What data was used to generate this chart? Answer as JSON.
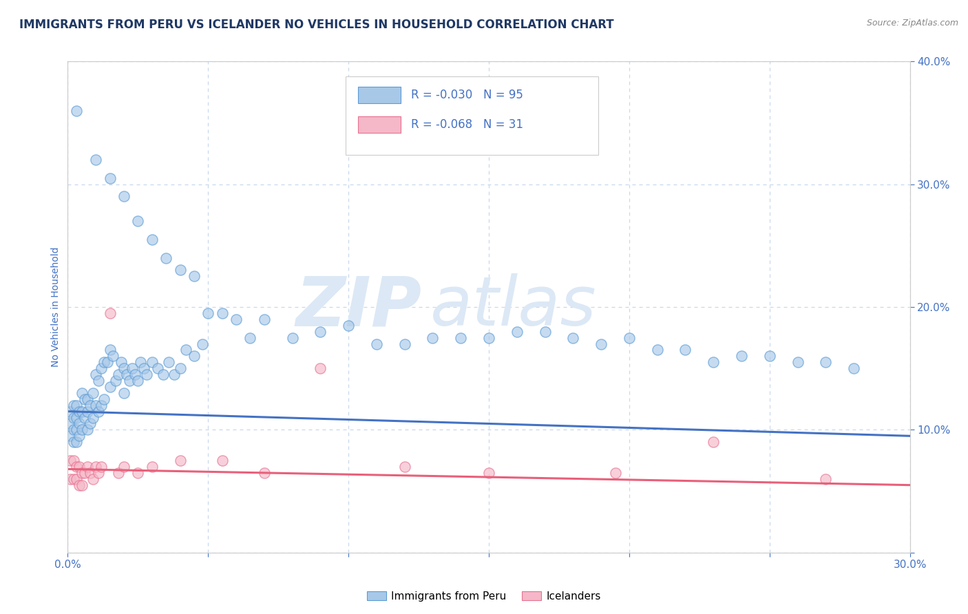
{
  "title": "IMMIGRANTS FROM PERU VS ICELANDER NO VEHICLES IN HOUSEHOLD CORRELATION CHART",
  "source": "Source: ZipAtlas.com",
  "ylabel_label": "No Vehicles in Household",
  "legend_label1": "Immigrants from Peru",
  "legend_label2": "Icelanders",
  "r1": -0.03,
  "n1": 95,
  "r2": -0.068,
  "n2": 31,
  "xlim": [
    0.0,
    0.3
  ],
  "ylim": [
    0.0,
    0.4
  ],
  "xticks": [
    0.0,
    0.05,
    0.1,
    0.15,
    0.2,
    0.25,
    0.3
  ],
  "yticks": [
    0.0,
    0.1,
    0.2,
    0.3,
    0.4
  ],
  "xtick_labels": [
    "0.0%",
    "",
    "",
    "",
    "",
    "",
    "30.0%"
  ],
  "ytick_labels_right": [
    "",
    "10.0%",
    "20.0%",
    "30.0%",
    "40.0%"
  ],
  "color_blue": "#a8c8e8",
  "color_pink": "#f4b8c8",
  "color_blue_edge": "#5b9bd5",
  "color_pink_edge": "#e87090",
  "color_blue_line": "#4472c4",
  "color_pink_line": "#e8607a",
  "color_title": "#1f3864",
  "color_axis_label": "#4472c4",
  "color_grid": "#c8d8ec",
  "watermark_color": "#dce8f5",
  "blue_x": [
    0.001,
    0.001,
    0.001,
    0.002,
    0.002,
    0.002,
    0.002,
    0.003,
    0.003,
    0.003,
    0.003,
    0.004,
    0.004,
    0.004,
    0.005,
    0.005,
    0.005,
    0.006,
    0.006,
    0.007,
    0.007,
    0.007,
    0.008,
    0.008,
    0.009,
    0.009,
    0.01,
    0.01,
    0.011,
    0.011,
    0.012,
    0.012,
    0.013,
    0.013,
    0.014,
    0.015,
    0.015,
    0.016,
    0.017,
    0.018,
    0.019,
    0.02,
    0.02,
    0.021,
    0.022,
    0.023,
    0.024,
    0.025,
    0.026,
    0.027,
    0.028,
    0.03,
    0.032,
    0.034,
    0.036,
    0.038,
    0.04,
    0.042,
    0.045,
    0.048,
    0.05,
    0.055,
    0.06,
    0.065,
    0.07,
    0.08,
    0.09,
    0.1,
    0.11,
    0.12,
    0.13,
    0.14,
    0.15,
    0.16,
    0.17,
    0.18,
    0.19,
    0.2,
    0.21,
    0.22,
    0.23,
    0.24,
    0.25,
    0.26,
    0.27,
    0.28,
    0.003,
    0.01,
    0.015,
    0.02,
    0.025,
    0.03,
    0.035,
    0.04,
    0.045
  ],
  "blue_y": [
    0.115,
    0.105,
    0.095,
    0.12,
    0.11,
    0.1,
    0.09,
    0.12,
    0.11,
    0.1,
    0.09,
    0.115,
    0.105,
    0.095,
    0.13,
    0.115,
    0.1,
    0.125,
    0.11,
    0.125,
    0.115,
    0.1,
    0.12,
    0.105,
    0.13,
    0.11,
    0.145,
    0.12,
    0.14,
    0.115,
    0.15,
    0.12,
    0.155,
    0.125,
    0.155,
    0.165,
    0.135,
    0.16,
    0.14,
    0.145,
    0.155,
    0.15,
    0.13,
    0.145,
    0.14,
    0.15,
    0.145,
    0.14,
    0.155,
    0.15,
    0.145,
    0.155,
    0.15,
    0.145,
    0.155,
    0.145,
    0.15,
    0.165,
    0.16,
    0.17,
    0.195,
    0.195,
    0.19,
    0.175,
    0.19,
    0.175,
    0.18,
    0.185,
    0.17,
    0.17,
    0.175,
    0.175,
    0.175,
    0.18,
    0.18,
    0.175,
    0.17,
    0.175,
    0.165,
    0.165,
    0.155,
    0.16,
    0.16,
    0.155,
    0.155,
    0.15,
    0.36,
    0.32,
    0.305,
    0.29,
    0.27,
    0.255,
    0.24,
    0.23,
    0.225
  ],
  "pink_x": [
    0.001,
    0.001,
    0.002,
    0.002,
    0.003,
    0.003,
    0.004,
    0.004,
    0.005,
    0.005,
    0.006,
    0.007,
    0.008,
    0.009,
    0.01,
    0.011,
    0.012,
    0.015,
    0.018,
    0.02,
    0.025,
    0.03,
    0.04,
    0.055,
    0.07,
    0.09,
    0.12,
    0.15,
    0.195,
    0.23,
    0.27
  ],
  "pink_y": [
    0.075,
    0.06,
    0.075,
    0.06,
    0.07,
    0.06,
    0.07,
    0.055,
    0.065,
    0.055,
    0.065,
    0.07,
    0.065,
    0.06,
    0.07,
    0.065,
    0.07,
    0.195,
    0.065,
    0.07,
    0.065,
    0.07,
    0.075,
    0.075,
    0.065,
    0.15,
    0.07,
    0.065,
    0.065,
    0.09,
    0.06
  ],
  "blue_line_x": [
    0.0,
    0.3
  ],
  "blue_line_y": [
    0.115,
    0.095
  ],
  "pink_line_x": [
    0.0,
    0.3
  ],
  "pink_line_y": [
    0.068,
    0.055
  ]
}
